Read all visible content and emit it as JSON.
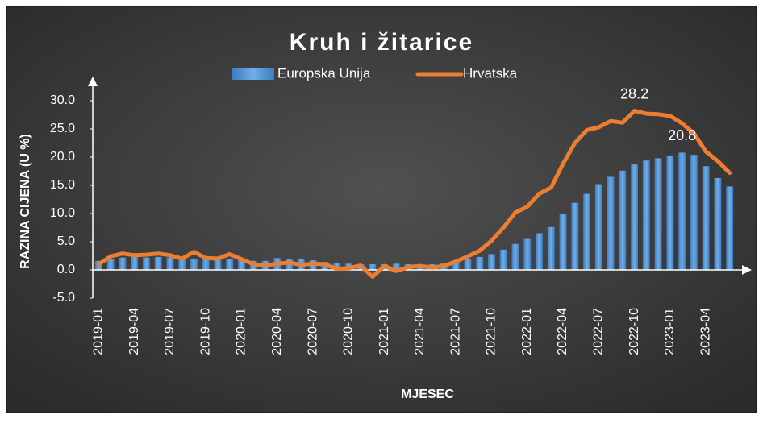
{
  "chart_data": {
    "type": "bar_line",
    "title": "Kruh i žitarice",
    "x_label": "MJESEC",
    "y_label": "RAZINA CIJENA (U %)",
    "categories": [
      "2019-01",
      null,
      null,
      "2019-04",
      null,
      null,
      "2019-07",
      null,
      null,
      "2019-10",
      null,
      null,
      "2020-01",
      null,
      null,
      "2020-04",
      null,
      null,
      "2020-07",
      null,
      null,
      "2020-10",
      null,
      null,
      "2021-01",
      null,
      null,
      "2021-04",
      null,
      null,
      "2021-07",
      null,
      null,
      "2021-10",
      null,
      null,
      "2022-01",
      null,
      null,
      "2022-04",
      null,
      null,
      "2022-07",
      null,
      null,
      "2022-10",
      null,
      null,
      "2023-01",
      null,
      null,
      "2023-04",
      null,
      null
    ],
    "series": [
      {
        "name": "Europska Unija",
        "type": "bar",
        "color": "#5b9bd5",
        "values": [
          1.6,
          1.9,
          2.2,
          2.3,
          2.2,
          2.3,
          2.2,
          2.1,
          2.0,
          2.0,
          1.9,
          1.9,
          1.8,
          1.6,
          1.6,
          2.1,
          2.0,
          1.9,
          1.7,
          1.4,
          1.2,
          1.1,
          1.0,
          1.0,
          1.0,
          1.1,
          1.0,
          1.0,
          1.0,
          1.2,
          1.5,
          2.0,
          2.3,
          2.8,
          3.6,
          4.6,
          5.5,
          6.5,
          7.6,
          9.9,
          11.9,
          13.5,
          15.2,
          16.5,
          17.6,
          18.7,
          19.4,
          19.8,
          20.3,
          20.8,
          20.4,
          18.4,
          16.3,
          14.8
        ],
        "value_labels": [
          null,
          null,
          null,
          null,
          null,
          null,
          null,
          null,
          null,
          null,
          null,
          null,
          null,
          null,
          null,
          null,
          null,
          null,
          null,
          null,
          null,
          null,
          null,
          null,
          null,
          null,
          null,
          null,
          null,
          null,
          null,
          null,
          null,
          null,
          null,
          null,
          null,
          null,
          null,
          null,
          null,
          null,
          null,
          null,
          null,
          null,
          null,
          null,
          null,
          "20.8",
          null,
          null,
          null,
          null
        ]
      },
      {
        "name": "Hrvatska",
        "type": "line",
        "color": "#ed7d31",
        "values": [
          1.0,
          2.4,
          2.9,
          2.6,
          2.7,
          2.9,
          2.6,
          2.0,
          3.2,
          2.1,
          2.0,
          2.8,
          1.9,
          1.0,
          0.8,
          1.1,
          1.3,
          0.9,
          1.1,
          1.0,
          0.2,
          0.3,
          0.8,
          -1.2,
          0.7,
          -0.2,
          0.5,
          0.7,
          0.4,
          0.7,
          1.5,
          2.4,
          3.4,
          5.2,
          7.5,
          10.2,
          11.2,
          13.5,
          14.6,
          18.8,
          22.5,
          24.8,
          25.3,
          26.4,
          26.1,
          28.2,
          27.7,
          27.6,
          27.3,
          26.0,
          24.2,
          21.0,
          19.3,
          17.2
        ],
        "value_labels": [
          null,
          null,
          null,
          null,
          null,
          null,
          null,
          null,
          null,
          null,
          null,
          null,
          null,
          null,
          null,
          null,
          null,
          null,
          null,
          null,
          null,
          null,
          null,
          null,
          null,
          null,
          null,
          null,
          null,
          null,
          null,
          null,
          null,
          null,
          null,
          null,
          null,
          null,
          null,
          null,
          null,
          null,
          null,
          null,
          null,
          "28.2",
          null,
          null,
          null,
          null,
          null,
          null,
          null,
          null
        ]
      }
    ],
    "ylim": [
      -5,
      34
    ],
    "yticks": [
      {
        "value": -5,
        "label": "-5.0"
      },
      {
        "value": 0,
        "label": "0.0"
      },
      {
        "value": 5,
        "label": "5.0"
      },
      {
        "value": 10,
        "label": "10.0"
      },
      {
        "value": 15,
        "label": "15.0"
      },
      {
        "value": 20,
        "label": "20.0"
      },
      {
        "value": 25,
        "label": "25.0"
      },
      {
        "value": 30,
        "label": "30.0"
      }
    ],
    "legend": "top"
  }
}
